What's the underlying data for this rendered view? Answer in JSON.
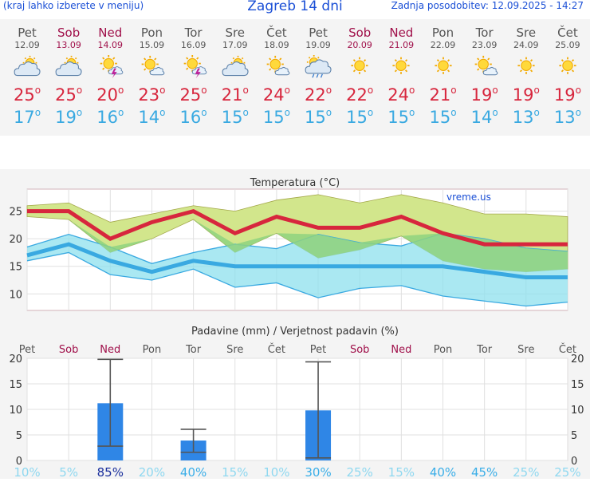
{
  "header": {
    "menu_hint": "(kraj lahko izberete v meniju)",
    "title": "Zagreb 14 dni",
    "updated": "Zadnja posodobitev: 12.09.2025 - 14:27"
  },
  "days": [
    {
      "name": "Pet",
      "date": "12.09",
      "weekend": false,
      "icon": "partly-cloudy-icon",
      "tmax": "25",
      "tmin": "17"
    },
    {
      "name": "Sob",
      "date": "13.09",
      "weekend": true,
      "icon": "partly-cloudy-icon",
      "tmax": "25",
      "tmin": "19"
    },
    {
      "name": "Ned",
      "date": "14.09",
      "weekend": true,
      "icon": "sun-thunderstorm-icon",
      "tmax": "20",
      "tmin": "16"
    },
    {
      "name": "Pon",
      "date": "15.09",
      "weekend": false,
      "icon": "mostly-sunny-icon",
      "tmax": "23",
      "tmin": "14"
    },
    {
      "name": "Tor",
      "date": "16.09",
      "weekend": false,
      "icon": "sun-thunderstorm-icon",
      "tmax": "25",
      "tmin": "16"
    },
    {
      "name": "Sre",
      "date": "17.09",
      "weekend": false,
      "icon": "partly-cloudy-icon",
      "tmax": "21",
      "tmin": "15"
    },
    {
      "name": "Čet",
      "date": "18.09",
      "weekend": false,
      "icon": "mostly-sunny-icon",
      "tmax": "24",
      "tmin": "15"
    },
    {
      "name": "Pet",
      "date": "19.09",
      "weekend": false,
      "icon": "sun-rain-icon",
      "tmax": "22",
      "tmin": "15"
    },
    {
      "name": "Sob",
      "date": "20.09",
      "weekend": true,
      "icon": "sunny-icon",
      "tmax": "22",
      "tmin": "15"
    },
    {
      "name": "Ned",
      "date": "21.09",
      "weekend": true,
      "icon": "sunny-icon",
      "tmax": "24",
      "tmin": "15"
    },
    {
      "name": "Pon",
      "date": "22.09",
      "weekend": false,
      "icon": "sunny-icon",
      "tmax": "21",
      "tmin": "15"
    },
    {
      "name": "Tor",
      "date": "23.09",
      "weekend": false,
      "icon": "mostly-sunny-icon",
      "tmax": "19",
      "tmin": "14"
    },
    {
      "name": "Sre",
      "date": "24.09",
      "weekend": false,
      "icon": "sunny-icon",
      "tmax": "19",
      "tmin": "13"
    },
    {
      "name": "Čet",
      "date": "25.09",
      "weekend": false,
      "icon": "sunny-icon",
      "tmax": "19",
      "tmin": "13"
    }
  ],
  "colors": {
    "accent": "#1a4fd6",
    "weekend": "#a0104a",
    "tmax": "#d7263d",
    "tmin": "#39a9e1",
    "tmax_band": "#d2e68c",
    "tmin_band": "#8ee0ee",
    "overlap_band": "#8fd27f",
    "bar": "#2f86e6"
  },
  "chart_data": [
    {
      "type": "line",
      "title": "Temperatura (°C)",
      "watermark": "vreme.us",
      "ylim": [
        7,
        29
      ],
      "yticks": [
        10,
        15,
        20,
        25
      ],
      "categories": [
        "12.09",
        "13.09",
        "14.09",
        "15.09",
        "16.09",
        "17.09",
        "18.09",
        "19.09",
        "20.09",
        "21.09",
        "22.09",
        "23.09",
        "24.09",
        "25.09"
      ],
      "series": [
        {
          "values": [
            25,
            25,
            20,
            23,
            25,
            21,
            24,
            22,
            22,
            24,
            21,
            19,
            19,
            19
          ]
        },
        {
          "values": [
            17,
            19,
            16,
            14,
            16,
            15,
            15,
            15,
            15,
            15,
            15,
            14,
            13,
            13
          ]
        }
      ],
      "bands": [
        {
          "upper": [
            26,
            26.5,
            23,
            24.5,
            26,
            25,
            27,
            28,
            26.5,
            28,
            26.5,
            24.5,
            24.5,
            24
          ],
          "lower": [
            24,
            23.5,
            17.5,
            20,
            23.5,
            17.5,
            21,
            16.5,
            18,
            20.5,
            16,
            14.5,
            14,
            14.5
          ]
        },
        {
          "upper": [
            18.5,
            20.8,
            18.5,
            15.5,
            17.5,
            19,
            18.2,
            20.8,
            19.3,
            18.7,
            21,
            20,
            18.3,
            17.7
          ]
        },
        {
          "lower": [
            16,
            17.5,
            13.5,
            12.5,
            14.5,
            11.2,
            12,
            9.3,
            11,
            11.5,
            9.6,
            8.7,
            7.8,
            8.5
          ]
        }
      ]
    },
    {
      "type": "bar",
      "title": "Padavine (mm) / Verjetnost padavin (%)",
      "ylim": [
        0,
        20
      ],
      "yticks": [
        0,
        5,
        10,
        15,
        20
      ],
      "categories": [
        "Pet",
        "Sob",
        "Ned",
        "Pon",
        "Tor",
        "Sre",
        "Čet",
        "Pet",
        "Sob",
        "Ned",
        "Pon",
        "Tor",
        "Sre",
        "Čet"
      ],
      "series": [
        {
          "values": [
            0,
            0,
            11.2,
            0,
            3.9,
            0,
            0,
            9.8,
            0,
            0,
            0,
            0,
            0,
            0
          ]
        }
      ],
      "error_bars": [
        null,
        null,
        [
          2.8,
          19.8
        ],
        null,
        [
          1.6,
          6.1
        ],
        null,
        null,
        [
          0.5,
          19.3
        ],
        null,
        null,
        null,
        null,
        null,
        null
      ],
      "probability": [
        "10%",
        "5%",
        "85%",
        "20%",
        "40%",
        "15%",
        "10%",
        "30%",
        "25%",
        "15%",
        "40%",
        "45%",
        "25%",
        "25%"
      ]
    }
  ]
}
